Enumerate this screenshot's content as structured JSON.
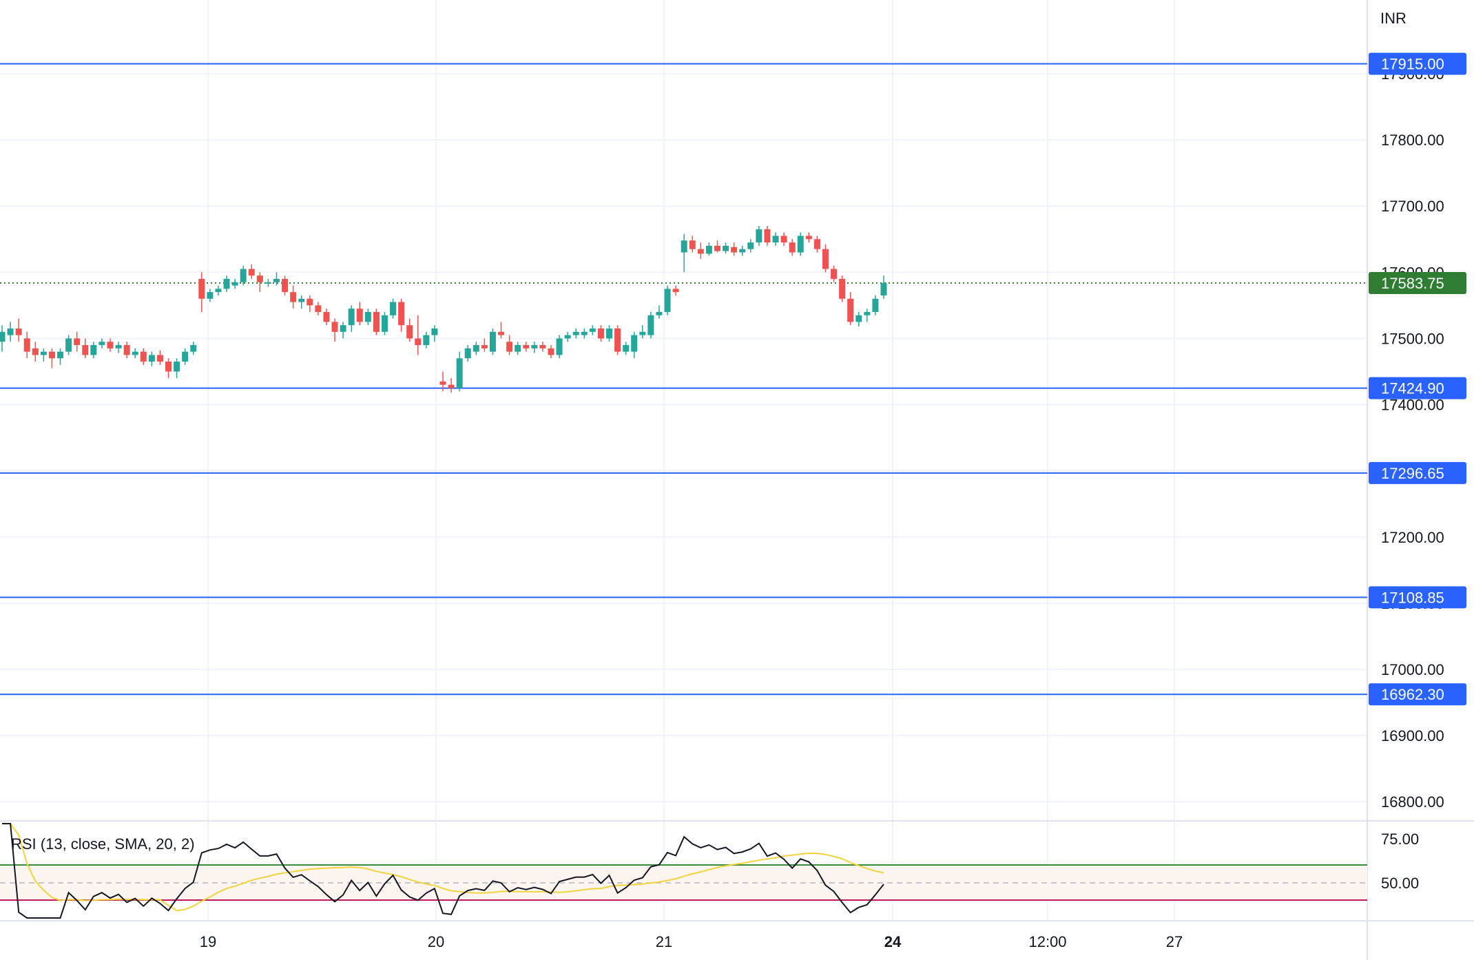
{
  "currency": "INR",
  "colors": {
    "up": "#26a69a",
    "down": "#ef5350",
    "level": "#2962ff",
    "last_price": "#2e7d32",
    "grid": "#f0f3fa",
    "rsi_line": "#131722",
    "rsi_sma": "#f5d33a",
    "rsi_upper": "#388e3c",
    "rsi_lower": "#c2185b",
    "rsi_band": "#fdf5f0"
  },
  "price_axis": {
    "ticks": [
      "17900.00",
      "17800.00",
      "17700.00",
      "17600.00",
      "17500.00",
      "17400.00",
      "17300.00",
      "17200.00",
      "17100.00",
      "17000.00",
      "16900.00",
      "16800.00"
    ]
  },
  "time_axis": {
    "labels": [
      {
        "text": "19",
        "bold": false
      },
      {
        "text": "20",
        "bold": false
      },
      {
        "text": "21",
        "bold": false
      },
      {
        "text": "24",
        "bold": true
      },
      {
        "text": "12:00",
        "bold": false
      },
      {
        "text": "27",
        "bold": false
      }
    ]
  },
  "rsi_pane": {
    "legend": "RSI (13, close, SMA, 20, 2)",
    "ticks": [
      "75.00",
      "50.00"
    ]
  },
  "chart_data": {
    "type": "candlestick",
    "instrument_currency": "INR",
    "ylim": [
      16780,
      17990
    ],
    "last_price": 17583.75,
    "horizontal_levels": [
      17915.0,
      17424.9,
      17296.65,
      17108.85,
      16962.3
    ],
    "candles": [
      [
        17495,
        17520,
        17480,
        17510
      ],
      [
        17505,
        17525,
        17495,
        17515
      ],
      [
        17515,
        17530,
        17495,
        17505
      ],
      [
        17500,
        17510,
        17470,
        17480
      ],
      [
        17485,
        17495,
        17465,
        17475
      ],
      [
        17475,
        17485,
        17465,
        17480
      ],
      [
        17480,
        17485,
        17455,
        17470
      ],
      [
        17470,
        17485,
        17460,
        17480
      ],
      [
        17480,
        17505,
        17475,
        17500
      ],
      [
        17500,
        17510,
        17480,
        17490
      ],
      [
        17490,
        17500,
        17470,
        17475
      ],
      [
        17475,
        17495,
        17470,
        17490
      ],
      [
        17490,
        17500,
        17485,
        17495
      ],
      [
        17495,
        17500,
        17480,
        17485
      ],
      [
        17485,
        17495,
        17478,
        17490
      ],
      [
        17490,
        17495,
        17470,
        17475
      ],
      [
        17475,
        17485,
        17470,
        17480
      ],
      [
        17480,
        17485,
        17460,
        17465
      ],
      [
        17465,
        17480,
        17458,
        17475
      ],
      [
        17475,
        17482,
        17460,
        17465
      ],
      [
        17465,
        17470,
        17440,
        17450
      ],
      [
        17450,
        17470,
        17440,
        17465
      ],
      [
        17465,
        17485,
        17460,
        17480
      ],
      [
        17480,
        17495,
        17475,
        17490
      ],
      [
        17590,
        17600,
        17540,
        17560
      ],
      [
        17560,
        17575,
        17555,
        17570
      ],
      [
        17570,
        17580,
        17565,
        17575
      ],
      [
        17575,
        17595,
        17570,
        17590
      ],
      [
        17580,
        17590,
        17575,
        17585
      ],
      [
        17585,
        17610,
        17580,
        17605
      ],
      [
        17605,
        17612,
        17590,
        17595
      ],
      [
        17595,
        17600,
        17570,
        17585
      ],
      [
        17585,
        17590,
        17578,
        17585
      ],
      [
        17585,
        17600,
        17580,
        17590
      ],
      [
        17590,
        17595,
        17565,
        17570
      ],
      [
        17570,
        17580,
        17545,
        17555
      ],
      [
        17555,
        17565,
        17545,
        17560
      ],
      [
        17560,
        17565,
        17540,
        17550
      ],
      [
        17550,
        17555,
        17535,
        17540
      ],
      [
        17540,
        17545,
        17520,
        17525
      ],
      [
        17525,
        17530,
        17495,
        17510
      ],
      [
        17510,
        17525,
        17500,
        17520
      ],
      [
        17520,
        17550,
        17510,
        17545
      ],
      [
        17545,
        17555,
        17520,
        17525
      ],
      [
        17525,
        17545,
        17520,
        17540
      ],
      [
        17540,
        17545,
        17505,
        17510
      ],
      [
        17510,
        17540,
        17505,
        17535
      ],
      [
        17535,
        17560,
        17530,
        17555
      ],
      [
        17555,
        17560,
        17510,
        17520
      ],
      [
        17520,
        17530,
        17495,
        17500
      ],
      [
        17500,
        17535,
        17475,
        17490
      ],
      [
        17490,
        17510,
        17485,
        17505
      ],
      [
        17505,
        17520,
        17495,
        17515
      ],
      [
        17435,
        17450,
        17420,
        17430
      ],
      [
        17430,
        17440,
        17418,
        17425
      ],
      [
        17425,
        17480,
        17420,
        17470
      ],
      [
        17470,
        17490,
        17465,
        17485
      ],
      [
        17480,
        17495,
        17475,
        17490
      ],
      [
        17490,
        17500,
        17480,
        17485
      ],
      [
        17480,
        17515,
        17475,
        17510
      ],
      [
        17510,
        17525,
        17500,
        17505
      ],
      [
        17495,
        17505,
        17475,
        17480
      ],
      [
        17480,
        17495,
        17475,
        17490
      ],
      [
        17490,
        17495,
        17480,
        17485
      ],
      [
        17485,
        17495,
        17478,
        17490
      ],
      [
        17490,
        17495,
        17480,
        17485
      ],
      [
        17485,
        17490,
        17470,
        17475
      ],
      [
        17475,
        17505,
        17470,
        17500
      ],
      [
        17500,
        17510,
        17495,
        17505
      ],
      [
        17505,
        17515,
        17500,
        17510
      ],
      [
        17505,
        17515,
        17500,
        17510
      ],
      [
        17510,
        17520,
        17505,
        17515
      ],
      [
        17515,
        17520,
        17495,
        17500
      ],
      [
        17500,
        17520,
        17495,
        17515
      ],
      [
        17515,
        17520,
        17475,
        17480
      ],
      [
        17480,
        17495,
        17475,
        17490
      ],
      [
        17480,
        17510,
        17470,
        17505
      ],
      [
        17505,
        17520,
        17500,
        17510
      ],
      [
        17505,
        17540,
        17500,
        17535
      ],
      [
        17535,
        17550,
        17530,
        17540
      ],
      [
        17540,
        17580,
        17535,
        17575
      ],
      [
        17575,
        17580,
        17565,
        17570
      ],
      [
        17630,
        17658,
        17600,
        17648
      ],
      [
        17648,
        17655,
        17630,
        17635
      ],
      [
        17635,
        17645,
        17620,
        17628
      ],
      [
        17628,
        17645,
        17625,
        17640
      ],
      [
        17640,
        17648,
        17630,
        17632
      ],
      [
        17632,
        17645,
        17628,
        17640
      ],
      [
        17638,
        17645,
        17625,
        17630
      ],
      [
        17630,
        17640,
        17625,
        17635
      ],
      [
        17635,
        17650,
        17630,
        17645
      ],
      [
        17645,
        17670,
        17640,
        17665
      ],
      [
        17665,
        17670,
        17640,
        17645
      ],
      [
        17645,
        17660,
        17640,
        17655
      ],
      [
        17655,
        17660,
        17640,
        17645
      ],
      [
        17645,
        17650,
        17625,
        17630
      ],
      [
        17630,
        17660,
        17625,
        17655
      ],
      [
        17655,
        17660,
        17645,
        17650
      ],
      [
        17650,
        17655,
        17630,
        17635
      ],
      [
        17635,
        17642,
        17600,
        17605
      ],
      [
        17605,
        17610,
        17585,
        17590
      ],
      [
        17590,
        17595,
        17555,
        17560
      ],
      [
        17560,
        17570,
        17520,
        17525
      ],
      [
        17525,
        17540,
        17518,
        17535
      ],
      [
        17535,
        17545,
        17525,
        17540
      ],
      [
        17540,
        17565,
        17535,
        17560
      ],
      [
        17565,
        17595,
        17560,
        17583.75
      ]
    ]
  }
}
